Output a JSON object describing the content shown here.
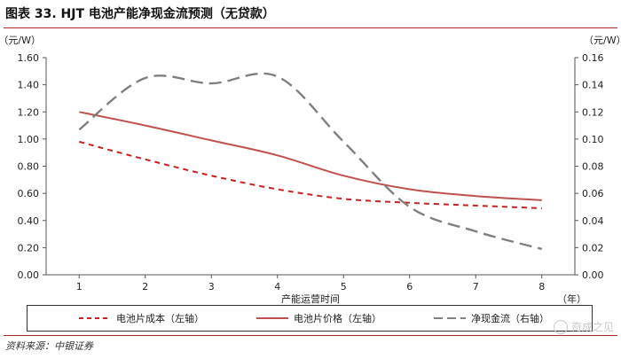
{
  "title": "图表 33. HJT 电池产能净现金流预测（无贷款）",
  "source": "资料来源：中银证券",
  "watermark": "奇成之见",
  "chart_data": {
    "type": "line",
    "x": [
      1,
      2,
      3,
      4,
      5,
      6,
      7,
      8
    ],
    "xlabel": "产能运营时间",
    "xunit": "（年）",
    "y_left": {
      "unit": "（元/W）",
      "lim": [
        0,
        1.6
      ],
      "ticks": [
        "0.00",
        "0.20",
        "0.40",
        "0.60",
        "0.80",
        "1.00",
        "1.20",
        "1.40",
        "1.60"
      ]
    },
    "y_right": {
      "unit": "（元/W）",
      "lim": [
        0,
        0.16
      ],
      "ticks": [
        "0.00",
        "0.02",
        "0.04",
        "0.06",
        "0.08",
        "0.10",
        "0.12",
        "0.14",
        "0.16"
      ]
    },
    "series": [
      {
        "name": "电池片成本（左轴）",
        "axis": "left",
        "style": "dashed",
        "color": "#cc1f1f",
        "values": [
          0.98,
          0.85,
          0.73,
          0.63,
          0.56,
          0.53,
          0.51,
          0.49
        ]
      },
      {
        "name": "电池片价格（左轴）",
        "axis": "left",
        "style": "solid",
        "color": "#c0504d",
        "values": [
          1.2,
          1.1,
          0.99,
          0.88,
          0.73,
          0.63,
          0.58,
          0.55
        ]
      },
      {
        "name": "净现金流（右轴）",
        "axis": "right",
        "style": "longdash",
        "color": "#7f7f7f",
        "values": [
          0.107,
          0.145,
          0.141,
          0.146,
          0.098,
          0.05,
          0.032,
          0.019
        ]
      }
    ],
    "grid": false,
    "legend_position": "bottom"
  }
}
